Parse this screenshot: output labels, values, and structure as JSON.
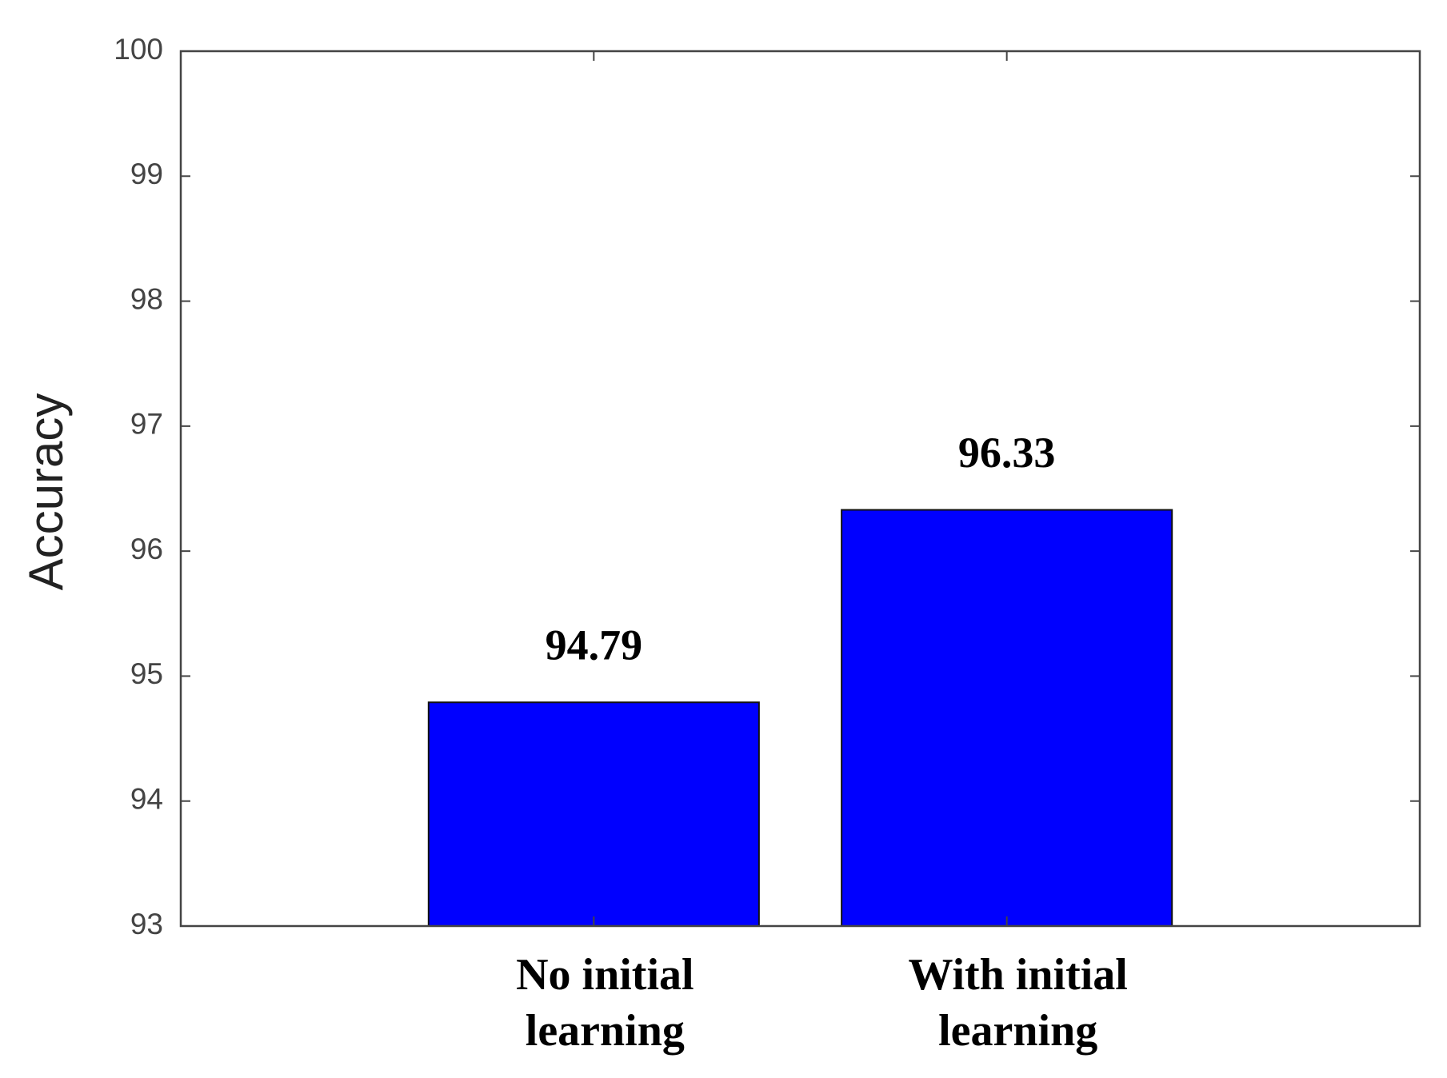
{
  "chart_data": {
    "type": "bar",
    "y_label": "Accuracy",
    "categories": [
      [
        "No initial",
        "learning"
      ],
      [
        "With initial",
        "learning"
      ]
    ],
    "values": [
      94.79,
      96.33
    ],
    "color": "#0000ff",
    "ylim": [
      93,
      100
    ],
    "yticks": [
      93,
      94,
      95,
      96,
      97,
      98,
      99,
      100
    ],
    "grid": false
  }
}
